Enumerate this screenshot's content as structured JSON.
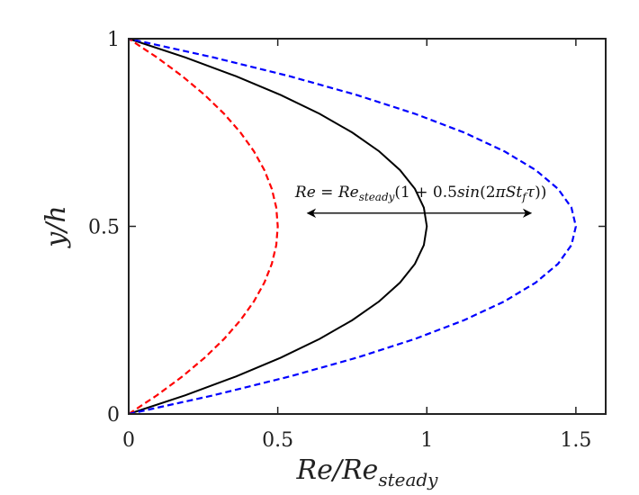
{
  "chart_data": {
    "type": "line",
    "xlabel": {
      "base": "Re/Re",
      "sub": "steady"
    },
    "ylabel": "y/h",
    "xlim": [
      0,
      1.6
    ],
    "ylim": [
      0,
      1
    ],
    "xticks": [
      0,
      0.5,
      1,
      1.5
    ],
    "yticks": [
      0,
      0.5,
      1
    ],
    "xtick_labels": [
      "0",
      "0.5",
      "1",
      "1.5"
    ],
    "ytick_labels": [
      "0",
      "0.5",
      "1"
    ],
    "grid": false,
    "series": [
      {
        "color": "#000000",
        "style": "solid",
        "x": [
          0,
          0.19,
          0.36,
          0.51,
          0.64,
          0.75,
          0.84,
          0.91,
          0.96,
          0.99,
          1.0,
          0.99,
          0.96,
          0.91,
          0.84,
          0.75,
          0.64,
          0.51,
          0.36,
          0.19,
          0
        ],
        "y": [
          0,
          0.05,
          0.1,
          0.15,
          0.2,
          0.25,
          0.3,
          0.35,
          0.4,
          0.45,
          0.5,
          0.55,
          0.6,
          0.65,
          0.7,
          0.75,
          0.8,
          0.85,
          0.9,
          0.95,
          1.0
        ]
      },
      {
        "color": "#ff0000",
        "style": "dashed",
        "x": [
          0,
          0.095,
          0.18,
          0.255,
          0.32,
          0.375,
          0.42,
          0.455,
          0.48,
          0.495,
          0.5,
          0.495,
          0.48,
          0.455,
          0.42,
          0.375,
          0.32,
          0.255,
          0.18,
          0.095,
          0
        ],
        "y": [
          0,
          0.05,
          0.1,
          0.15,
          0.2,
          0.25,
          0.3,
          0.35,
          0.4,
          0.45,
          0.5,
          0.55,
          0.6,
          0.65,
          0.7,
          0.75,
          0.8,
          0.85,
          0.9,
          0.95,
          1.0
        ]
      },
      {
        "color": "#0000ff",
        "style": "dashed",
        "x": [
          0,
          0.285,
          0.54,
          0.765,
          0.96,
          1.125,
          1.26,
          1.365,
          1.44,
          1.485,
          1.5,
          1.485,
          1.44,
          1.365,
          1.26,
          1.125,
          0.96,
          0.765,
          0.54,
          0.285,
          0
        ],
        "y": [
          0,
          0.05,
          0.1,
          0.15,
          0.2,
          0.25,
          0.3,
          0.35,
          0.4,
          0.45,
          0.5,
          0.55,
          0.6,
          0.65,
          0.7,
          0.75,
          0.8,
          0.85,
          0.9,
          0.95,
          1.0
        ]
      }
    ],
    "annotation": {
      "text_parts": {
        "lhs": "Re",
        "eq": " = ",
        "base": "Re",
        "sub1": "steady",
        "open": "(1 + 0.5",
        "func": "sin",
        "arg_open": "(2",
        "pi": "π",
        "st": "St",
        "sub2": "f",
        "tau": "τ",
        "close": "))"
      },
      "x": 0.98,
      "y": 0.54,
      "arrow": {
        "y": 0.54,
        "x_start": 0.6,
        "x_end": 1.35
      }
    }
  }
}
